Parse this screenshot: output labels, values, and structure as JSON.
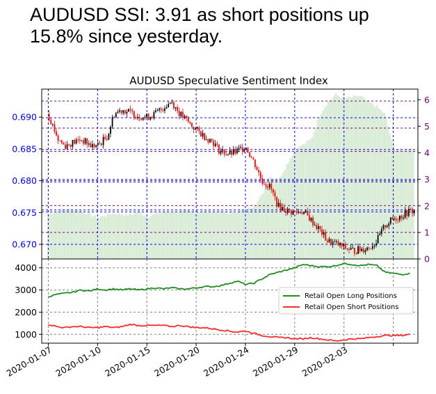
{
  "headline": "AUDUSD SSI: 3.91 as short positions up 15.8% since yesterday.",
  "colors": {
    "price_axis": "#0000ff",
    "ssi_axis": "#800080",
    "up_candle": "#000000",
    "down_candle": "#ff0000",
    "ssi_bars": "#d8ecd5",
    "long_line": "#228b22",
    "short_line": "#ff2a2a",
    "grid": "#808080"
  },
  "chart_data": [
    {
      "type": "candlestick",
      "title": "AUDUSD Speculative Sentiment Index",
      "ylim": [
        0.6677,
        0.6944
      ],
      "yticks": [
        "0.690",
        "0.685",
        "0.680",
        "0.675",
        "0.670"
      ],
      "ytick_values": [
        0.69,
        0.685,
        0.68,
        0.675,
        0.67
      ],
      "y2lim": [
        0,
        6.4
      ],
      "y2ticks": [
        "6",
        "5",
        "4",
        "3",
        "2",
        "1",
        "0"
      ],
      "y2tick_values": [
        6,
        5,
        4,
        3,
        2,
        1,
        0
      ],
      "blue_h_levels": [
        0.67,
        0.6751,
        0.6754,
        0.6798,
        0.6802,
        0.6849,
        0.6899
      ],
      "purple_h_levels": [
        1.0,
        2.01,
        2.95,
        4.05,
        4.93,
        5.95
      ],
      "price_line_points": [
        [
          0.0,
          0.6905
        ],
        [
          0.6,
          0.6865
        ],
        [
          1.0,
          0.6855
        ],
        [
          2.0,
          0.6865
        ],
        [
          2.6,
          0.6855
        ],
        [
          3.0,
          0.6855
        ],
        [
          3.6,
          0.687
        ],
        [
          4.0,
          0.6905
        ],
        [
          4.5,
          0.6912
        ],
        [
          5.5,
          0.6902
        ],
        [
          6.0,
          0.69
        ],
        [
          6.5,
          0.6905
        ],
        [
          7.0,
          0.6915
        ],
        [
          7.5,
          0.6925
        ],
        [
          8.0,
          0.6905
        ],
        [
          8.6,
          0.689
        ],
        [
          9.0,
          0.688
        ],
        [
          9.6,
          0.6868
        ],
        [
          10.0,
          0.6862
        ],
        [
          10.4,
          0.6848
        ],
        [
          11.0,
          0.6842
        ],
        [
          11.4,
          0.6845
        ],
        [
          12.0,
          0.6855
        ],
        [
          12.6,
          0.6825
        ],
        [
          13.0,
          0.68
        ],
        [
          13.5,
          0.679
        ],
        [
          14.0,
          0.676
        ],
        [
          14.6,
          0.6752
        ],
        [
          15.0,
          0.675
        ],
        [
          15.5,
          0.6752
        ],
        [
          16.0,
          0.6738
        ],
        [
          16.6,
          0.672
        ],
        [
          17.0,
          0.6705
        ],
        [
          17.6,
          0.67
        ],
        [
          18.0,
          0.6695
        ],
        [
          18.6,
          0.669
        ],
        [
          19.0,
          0.6692
        ],
        [
          19.5,
          0.6695
        ],
        [
          20.0,
          0.6705
        ],
        [
          20.5,
          0.673
        ],
        [
          21.0,
          0.674
        ],
        [
          21.5,
          0.6745
        ],
        [
          22.0,
          0.6752
        ],
        [
          22.3,
          0.6752
        ]
      ],
      "ssi_bar_points": [
        [
          0.0,
          1.7
        ],
        [
          1.0,
          1.88
        ],
        [
          2.0,
          1.83
        ],
        [
          3.0,
          1.55
        ],
        [
          4.0,
          1.73
        ],
        [
          5.0,
          1.65
        ],
        [
          5.5,
          1.8
        ],
        [
          6.0,
          1.58
        ],
        [
          7.0,
          1.78
        ],
        [
          8.0,
          1.78
        ],
        [
          9.0,
          1.8
        ],
        [
          10.0,
          1.8
        ],
        [
          11.0,
          1.73
        ],
        [
          12.0,
          1.85
        ],
        [
          12.6,
          2.05
        ],
        [
          13.0,
          2.4
        ],
        [
          13.5,
          3.1
        ],
        [
          14.0,
          2.95
        ],
        [
          14.6,
          3.65
        ],
        [
          15.0,
          4.1
        ],
        [
          16.0,
          4.5
        ],
        [
          16.5,
          5.4
        ],
        [
          17.0,
          5.9
        ],
        [
          17.5,
          6.2
        ],
        [
          18.0,
          6.05
        ],
        [
          19.0,
          6.15
        ],
        [
          19.5,
          5.9
        ],
        [
          20.0,
          5.75
        ],
        [
          20.5,
          5.45
        ],
        [
          21.0,
          4.2
        ],
        [
          21.5,
          4.1
        ],
        [
          22.0,
          4.2
        ],
        [
          22.3,
          4.1
        ]
      ]
    },
    {
      "type": "line",
      "ylim": [
        600,
        4400
      ],
      "yticks": [
        "4000",
        "3000",
        "2000",
        "1000"
      ],
      "ytick_values": [
        4000,
        3000,
        2000,
        1000
      ],
      "xticks": [
        "2020-01-07",
        "2020-01-10",
        "2020-01-15",
        "2020-01-20",
        "2020-01-24",
        "2020-01-29",
        "2020-02-03"
      ],
      "xtick_positions": [
        0,
        3,
        6,
        9,
        12,
        15,
        18
      ],
      "x_extra_tick": 21,
      "xlim": [
        -0.4,
        22.5
      ],
      "legend": {
        "placement": "right",
        "entries": [
          "Retail Open Long Positions",
          "Retail Open Short Positions"
        ]
      },
      "series": [
        {
          "name": "Retail Open Long Positions",
          "points": [
            [
              0.0,
              2700
            ],
            [
              0.5,
              2800
            ],
            [
              1.0,
              2850
            ],
            [
              1.5,
              2900
            ],
            [
              2.0,
              3000
            ],
            [
              2.5,
              2950
            ],
            [
              3.0,
              3050
            ],
            [
              3.5,
              3000
            ],
            [
              4.0,
              3050
            ],
            [
              4.5,
              3000
            ],
            [
              5.0,
              3050
            ],
            [
              5.5,
              3000
            ],
            [
              6.0,
              3050
            ],
            [
              6.5,
              3100
            ],
            [
              7.0,
              3050
            ],
            [
              7.5,
              3100
            ],
            [
              8.0,
              3050
            ],
            [
              8.5,
              3050
            ],
            [
              9.0,
              3100
            ],
            [
              9.5,
              3150
            ],
            [
              10.0,
              3150
            ],
            [
              10.5,
              3200
            ],
            [
              11.0,
              3300
            ],
            [
              11.5,
              3400
            ],
            [
              12.0,
              3250
            ],
            [
              12.5,
              3300
            ],
            [
              13.0,
              3500
            ],
            [
              13.5,
              3700
            ],
            [
              14.0,
              3800
            ],
            [
              14.5,
              3900
            ],
            [
              15.0,
              4000
            ],
            [
              15.5,
              4150
            ],
            [
              16.0,
              4100
            ],
            [
              16.5,
              4050
            ],
            [
              17.0,
              4050
            ],
            [
              17.5,
              4100
            ],
            [
              18.0,
              4200
            ],
            [
              18.5,
              4150
            ],
            [
              19.0,
              4100
            ],
            [
              19.5,
              4150
            ],
            [
              20.0,
              4100
            ],
            [
              20.5,
              3800
            ],
            [
              21.0,
              3750
            ],
            [
              21.5,
              3700
            ],
            [
              22.0,
              3750
            ]
          ]
        },
        {
          "name": "Retail Open Short Positions",
          "points": [
            [
              0.0,
              1450
            ],
            [
              0.5,
              1350
            ],
            [
              1.0,
              1300
            ],
            [
              1.5,
              1350
            ],
            [
              2.0,
              1350
            ],
            [
              2.5,
              1300
            ],
            [
              3.0,
              1300
            ],
            [
              3.5,
              1350
            ],
            [
              4.0,
              1300
            ],
            [
              4.5,
              1350
            ],
            [
              5.0,
              1450
            ],
            [
              5.5,
              1400
            ],
            [
              6.0,
              1400
            ],
            [
              6.5,
              1400
            ],
            [
              7.0,
              1400
            ],
            [
              7.5,
              1350
            ],
            [
              8.0,
              1400
            ],
            [
              8.5,
              1350
            ],
            [
              9.0,
              1300
            ],
            [
              9.5,
              1300
            ],
            [
              10.0,
              1250
            ],
            [
              10.5,
              1200
            ],
            [
              11.0,
              1150
            ],
            [
              11.5,
              1100
            ],
            [
              12.0,
              1150
            ],
            [
              12.5,
              1050
            ],
            [
              13.0,
              950
            ],
            [
              13.5,
              900
            ],
            [
              14.0,
              850
            ],
            [
              14.5,
              850
            ],
            [
              15.0,
              800
            ],
            [
              15.5,
              800
            ],
            [
              16.0,
              850
            ],
            [
              16.5,
              800
            ],
            [
              17.0,
              750
            ],
            [
              17.5,
              700
            ],
            [
              18.0,
              750
            ],
            [
              18.5,
              800
            ],
            [
              19.0,
              800
            ],
            [
              19.5,
              850
            ],
            [
              20.0,
              900
            ],
            [
              20.5,
              950
            ],
            [
              21.0,
              950
            ],
            [
              21.5,
              950
            ],
            [
              22.0,
              1000
            ]
          ]
        }
      ]
    }
  ]
}
